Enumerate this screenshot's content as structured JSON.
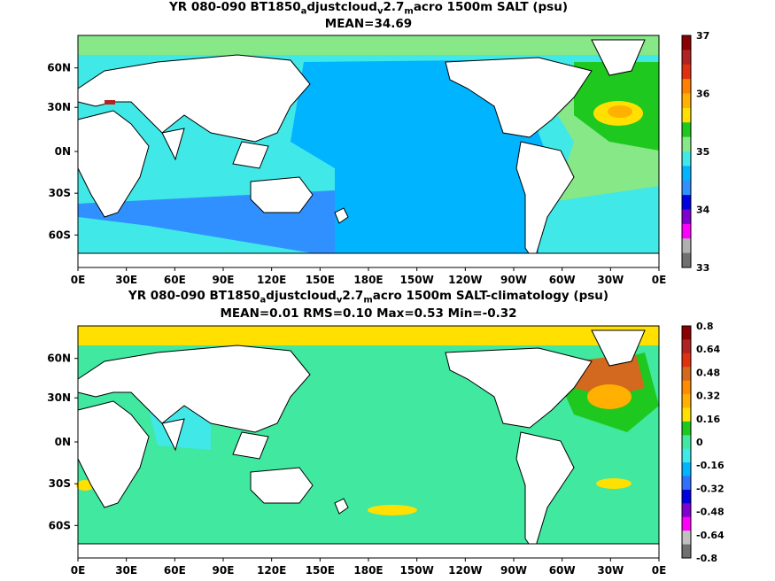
{
  "panels": [
    {
      "title_parts": [
        "YR 080-090 BT1850",
        "a",
        "djustcloud",
        "v",
        "2.7",
        "m",
        "acro 1500m SALT (psu)"
      ],
      "subtitle": "MEAN=34.69",
      "colorbar": {
        "labels": [
          "37",
          "36",
          "35",
          "34",
          "33"
        ],
        "colors": [
          "#8b0000",
          "#b22222",
          "#e03010",
          "#ff7f00",
          "#ffb000",
          "#ffe000",
          "#1ec81e",
          "#87e887",
          "#40e8e8",
          "#00b4ff",
          "#3090ff",
          "#0000e0",
          "#8000d0",
          "#ff00ff",
          "#b0b0b0",
          "#707070"
        ]
      }
    },
    {
      "title_parts": [
        "YR 080-090 BT1850",
        "a",
        "djustcloud",
        "v",
        "2.7",
        "m",
        "acro 1500m SALT-climatology (psu)"
      ],
      "subtitle": "MEAN=0.01   RMS=0.10   Max=0.53   Min=-0.32",
      "colorbar": {
        "labels": [
          "0.8",
          "0.64",
          "0.48",
          "0.32",
          "0.16",
          "0",
          "-0.16",
          "-0.32",
          "-0.48",
          "-0.64",
          "-0.8"
        ],
        "colors": [
          "#8b0000",
          "#b22222",
          "#e03010",
          "#d2691e",
          "#ff8c00",
          "#ffb000",
          "#ffe000",
          "#1ec81e",
          "#40e8a0",
          "#40e8e8",
          "#00b4ff",
          "#3070ff",
          "#0000e0",
          "#8000d0",
          "#ff00ff",
          "#c0c0c0",
          "#707070"
        ]
      }
    }
  ],
  "axes": {
    "lon_ticks": [
      "0E",
      "30E",
      "60E",
      "90E",
      "120E",
      "150E",
      "180E",
      "150W",
      "120W",
      "90W",
      "60W",
      "30W",
      "0E"
    ],
    "lat_ticks": [
      "60N",
      "30N",
      "0N",
      "30S",
      "60S"
    ]
  },
  "map_fields": {
    "top": {
      "land": "#ffffff",
      "pacific": "#00b4ff",
      "indian": "#40e8e8",
      "southern": "#3090ff",
      "atlantic": "#87e887",
      "north_atlantic": "#1ec81e",
      "subtropical_atlantic": "#ffe000",
      "arctic": "#87e887"
    },
    "bottom": {
      "land": "#ffffff",
      "ocean": "#40e8a0",
      "arctic": "#ffe000",
      "north_atlantic": "#d2691e",
      "atlantic": "#1ec81e",
      "indian": "#40e8e8",
      "southern_patch": "#ffe000"
    }
  }
}
